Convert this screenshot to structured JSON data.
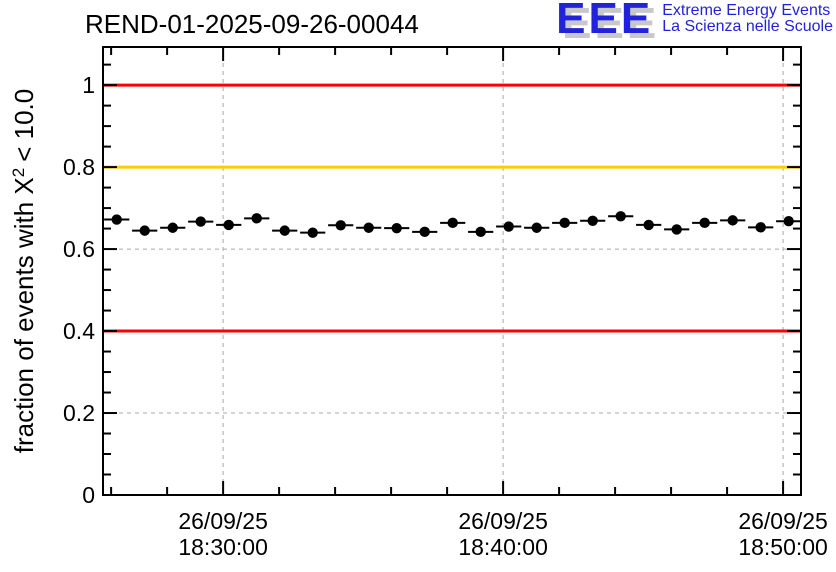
{
  "header": {
    "logo": {
      "acronym": "EEE",
      "line1": "Extreme Energy Events",
      "line2": "La Scienza nelle Scuole",
      "blue": "#2222dd",
      "shadow": "#c8c8c8"
    }
  },
  "chart_data": {
    "type": "scatter",
    "title": "REND-01-2025-09-26-00044",
    "xlabel": "",
    "ylabel": {
      "prefix": "fraction of events with X",
      "sup": "2",
      "suffix": "< 10.0"
    },
    "x_unit": "time of day on 26/09/25 (minutes after 18:00)",
    "xlim": [
      25.71,
      50.64
    ],
    "ylim": [
      0,
      1.093
    ],
    "grid": {
      "on": true,
      "color": "#a9a9a9",
      "dash": "4 4"
    },
    "y_major_ticks": [
      {
        "v": 0.0,
        "label": "0"
      },
      {
        "v": 0.2,
        "label": "0.2"
      },
      {
        "v": 0.4,
        "label": "0.4"
      },
      {
        "v": 0.6,
        "label": "0.6"
      },
      {
        "v": 0.8,
        "label": "0.8"
      },
      {
        "v": 1.0,
        "label": "1"
      }
    ],
    "y_minor_step": 0.05,
    "x_major_ticks": [
      {
        "v": 30,
        "label1": "26/09/25",
        "label2": "18:30:00"
      },
      {
        "v": 40,
        "label1": "26/09/25",
        "label2": "18:40:00"
      },
      {
        "v": 50,
        "label1": "26/09/25",
        "label2": "18:50:00"
      }
    ],
    "x_minor_ticks": [
      26,
      28,
      32,
      34,
      36,
      38,
      42,
      44,
      46,
      48
    ],
    "ref_lines": [
      {
        "y": 1.0,
        "color": "#ff0000"
      },
      {
        "y": 0.8,
        "color": "#ffcc00"
      },
      {
        "y": 0.4,
        "color": "#ff0000"
      }
    ],
    "series": [
      {
        "name": "fraction of events with chi2 < 10",
        "marker": "filled-circle",
        "color": "#000000",
        "bins": {
          "start_min": 26.2,
          "step_min": 1.0,
          "halfwidth_min": 0.45
        },
        "times": [
          "18:26",
          "18:27",
          "18:28",
          "18:29",
          "18:30",
          "18:31",
          "18:32",
          "18:33",
          "18:34",
          "18:35",
          "18:36",
          "18:37",
          "18:38",
          "18:39",
          "18:40",
          "18:41",
          "18:42",
          "18:43",
          "18:44",
          "18:45",
          "18:46",
          "18:47",
          "18:48",
          "18:49",
          "18:50"
        ],
        "values": [
          0.672,
          0.645,
          0.652,
          0.667,
          0.659,
          0.675,
          0.645,
          0.64,
          0.658,
          0.652,
          0.651,
          0.642,
          0.664,
          0.642,
          0.655,
          0.652,
          0.664,
          0.669,
          0.68,
          0.659,
          0.648,
          0.664,
          0.67,
          0.653,
          0.668
        ]
      }
    ]
  }
}
